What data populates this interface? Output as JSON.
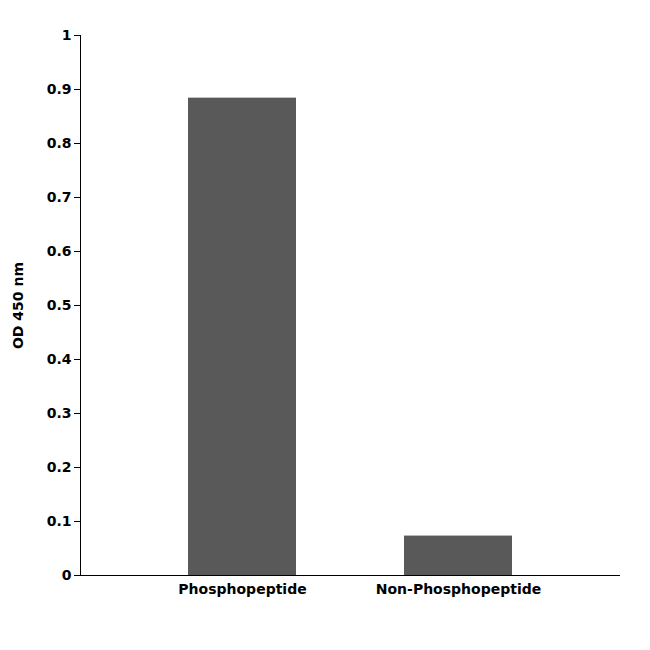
{
  "chart_data": {
    "type": "bar",
    "categories": [
      "Phosphopeptide",
      "Non-Phosphopeptide"
    ],
    "values": [
      0.884,
      0.073
    ],
    "color": "#595959",
    "ylabel": "OD 450 nm",
    "ylim": [
      0,
      1.0
    ],
    "yticks": [
      0,
      0.1,
      0.2,
      0.3,
      0.4,
      0.5,
      0.6,
      0.7,
      0.8,
      0.9,
      1
    ],
    "grid": false
  }
}
